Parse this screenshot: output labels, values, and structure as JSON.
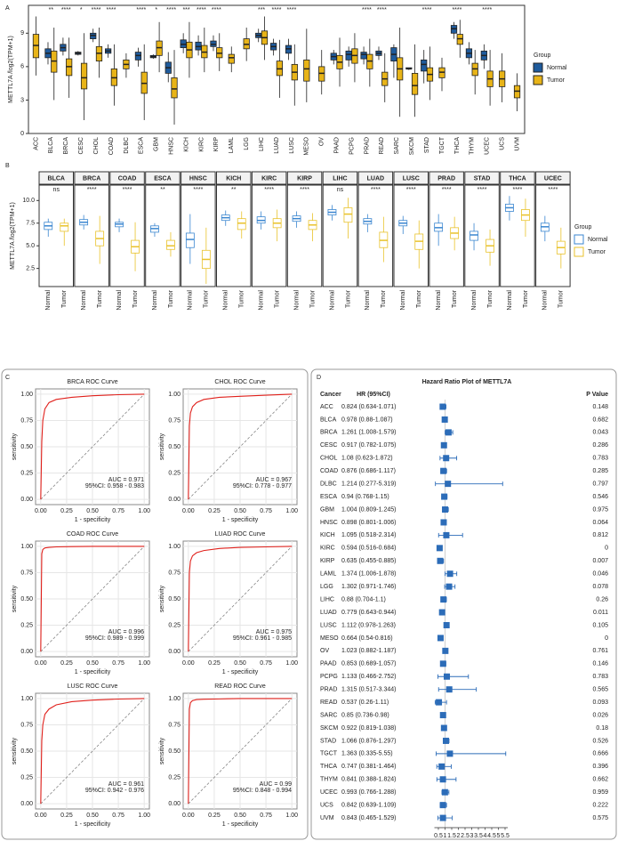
{
  "chart_data": [
    {
      "panel": "A",
      "type": "boxplot",
      "ylabel": "METTL7A /log2(TPM+1)",
      "categories": [
        "ACC",
        "BLCA",
        "BRCA",
        "CESC",
        "CHOL",
        "COAD",
        "DLBC",
        "ESCA",
        "GBM",
        "HNSC",
        "KICH",
        "KIRC",
        "KIRP",
        "LAML",
        "LGG",
        "LIHC",
        "LUAD",
        "LUSC",
        "MESO",
        "OV",
        "PAAD",
        "PCPG",
        "PRAD",
        "READ",
        "SARC",
        "SKCM",
        "STAD",
        "TGCT",
        "THCA",
        "THYM",
        "UCEC",
        "UCS",
        "UVM"
      ],
      "significance": [
        null,
        "**",
        "****",
        "*",
        "****",
        "****",
        null,
        "****",
        "*",
        "****",
        "***",
        "****",
        "****",
        null,
        null,
        "***",
        "****",
        "****",
        null,
        null,
        null,
        null,
        "****",
        "****",
        null,
        null,
        "****",
        null,
        "****",
        null,
        "****",
        null,
        null
      ],
      "ylim": [
        0,
        11.5
      ],
      "yticks": [
        0,
        3,
        6,
        9
      ],
      "legend_title": "Group",
      "series": [
        {
          "name": "Normal",
          "color": "#1f5b9c",
          "q1": [
            null,
            6.8,
            7.4,
            7.1,
            8.5,
            7.2,
            null,
            6.6,
            6.8,
            5.4,
            7.7,
            7.5,
            7.8,
            null,
            null,
            8.6,
            7.5,
            7.2,
            null,
            null,
            6.6,
            6.6,
            6.7,
            7.0,
            6.5,
            5.8,
            5.6,
            null,
            9.0,
            6.8,
            6.6,
            null,
            null
          ],
          "median": [
            null,
            7.2,
            7.7,
            7.2,
            8.8,
            7.4,
            null,
            7.0,
            6.9,
            5.9,
            8.0,
            7.8,
            8.0,
            null,
            null,
            8.8,
            7.8,
            7.6,
            null,
            null,
            6.9,
            7.1,
            7.1,
            7.2,
            7.1,
            5.8,
            6.2,
            null,
            9.4,
            7.2,
            7.0,
            null,
            null
          ],
          "q3": [
            null,
            7.6,
            8.0,
            7.3,
            9.0,
            7.6,
            null,
            7.3,
            7.0,
            6.4,
            8.4,
            8.2,
            8.3,
            null,
            null,
            9.0,
            8.1,
            7.9,
            null,
            null,
            7.2,
            7.4,
            7.3,
            7.4,
            7.7,
            5.9,
            6.6,
            null,
            9.7,
            7.6,
            7.4,
            null,
            null
          ],
          "low": [
            null,
            6.2,
            7.0,
            7.0,
            8.2,
            6.8,
            null,
            6.0,
            6.7,
            4.6,
            7.2,
            7.0,
            7.4,
            null,
            null,
            8.2,
            7.0,
            6.6,
            null,
            null,
            6.2,
            6.0,
            6.2,
            6.6,
            5.0,
            5.7,
            4.5,
            null,
            8.5,
            6.2,
            5.8,
            null,
            null
          ],
          "high": [
            null,
            8.2,
            8.6,
            7.4,
            9.4,
            8.0,
            null,
            7.7,
            7.1,
            7.3,
            9.0,
            8.8,
            8.8,
            null,
            null,
            9.4,
            8.5,
            8.5,
            null,
            null,
            7.5,
            7.8,
            7.8,
            7.8,
            8.0,
            5.9,
            7.5,
            null,
            10.0,
            8.2,
            8.0,
            null,
            null
          ]
        },
        {
          "name": "Tumor",
          "color": "#e8b418",
          "q1": [
            6.8,
            5.5,
            5.2,
            4.0,
            6.5,
            4.3,
            5.8,
            3.6,
            7.0,
            3.2,
            6.8,
            6.8,
            6.8,
            6.3,
            7.6,
            8.0,
            5.2,
            4.8,
            4.7,
            4.7,
            5.8,
            6.3,
            5.8,
            4.3,
            4.8,
            3.5,
            4.7,
            5.0,
            8.0,
            5.2,
            4.2,
            4.2,
            3.2
          ],
          "median": [
            7.9,
            6.5,
            6.0,
            5.0,
            7.2,
            5.0,
            6.2,
            4.5,
            7.7,
            4.0,
            7.5,
            7.3,
            7.2,
            6.8,
            8.0,
            8.6,
            5.8,
            5.5,
            5.8,
            5.4,
            6.4,
            7.0,
            6.5,
            4.9,
            5.8,
            4.3,
            5.3,
            5.5,
            8.5,
            5.8,
            4.9,
            4.9,
            3.8
          ],
          "q3": [
            8.9,
            7.4,
            6.7,
            6.3,
            7.8,
            5.8,
            6.6,
            5.5,
            8.3,
            5.0,
            8.2,
            7.9,
            7.7,
            7.1,
            8.5,
            9.2,
            6.5,
            6.2,
            6.6,
            6.0,
            7.0,
            7.6,
            7.1,
            5.5,
            6.8,
            5.4,
            5.9,
            5.9,
            8.9,
            6.3,
            5.6,
            5.6,
            4.3
          ],
          "low": [
            5.2,
            3.0,
            3.2,
            1.2,
            5.0,
            2.5,
            5.0,
            1.2,
            5.5,
            0.8,
            5.0,
            5.5,
            5.6,
            5.5,
            6.5,
            6.6,
            3.2,
            2.5,
            2.8,
            3.5,
            4.2,
            4.6,
            4.2,
            2.8,
            1.5,
            1.5,
            3.0,
            3.8,
            6.8,
            3.5,
            2.5,
            2.8,
            2.0
          ],
          "high": [
            10.5,
            9.5,
            8.6,
            9.0,
            9.5,
            8.0,
            7.2,
            8.0,
            10.0,
            7.5,
            10.0,
            9.5,
            9.0,
            7.8,
            9.5,
            10.5,
            8.4,
            8.0,
            9.4,
            7.5,
            8.6,
            9.0,
            8.5,
            7.2,
            9.5,
            8.0,
            7.8,
            6.8,
            10.2,
            7.5,
            7.5,
            7.2,
            5.4
          ]
        }
      ]
    },
    {
      "panel": "B",
      "type": "paired_boxplot",
      "ylabel": "METTL7A /log2(TPM+1)",
      "categories": [
        "BLCA",
        "BRCA",
        "COAD",
        "ESCA",
        "HNSC",
        "KICH",
        "KIRC",
        "KIRP",
        "LIHC",
        "LUAD",
        "LUSC",
        "PRAD",
        "STAD",
        "THCA",
        "UCEC"
      ],
      "significance": [
        "ns",
        "****",
        "****",
        "**",
        "****",
        "**",
        "****",
        "****",
        "ns",
        "****",
        "****",
        "****",
        "****",
        "****",
        "****"
      ],
      "ylim": [
        0.5,
        11.7
      ],
      "yticks": [
        2.5,
        {
          "value": 5,
          "label": "5.0"
        },
        7.5,
        {
          "value": 10,
          "label": "10.0"
        }
      ],
      "legend_title": "Group",
      "series": [
        {
          "name": "Normal",
          "color": "#3a86d0",
          "q1": [
            6.8,
            7.3,
            7.1,
            6.5,
            4.8,
            7.8,
            7.5,
            7.7,
            8.4,
            7.4,
            7.2,
            6.6,
            5.6,
            8.8,
            6.6
          ],
          "median": [
            7.2,
            7.6,
            7.4,
            6.9,
            5.7,
            8.1,
            7.8,
            8.0,
            8.7,
            7.7,
            7.5,
            7.0,
            6.2,
            9.2,
            7.1
          ],
          "q3": [
            7.6,
            7.9,
            7.6,
            7.2,
            6.4,
            8.4,
            8.2,
            8.3,
            9.0,
            8.0,
            7.8,
            7.5,
            6.6,
            9.6,
            7.5
          ],
          "low": [
            6.0,
            6.8,
            6.5,
            6.0,
            3.0,
            7.2,
            6.8,
            7.0,
            7.8,
            6.5,
            6.3,
            5.0,
            4.5,
            7.8,
            5.5
          ],
          "high": [
            8.0,
            8.4,
            8.0,
            7.5,
            8.5,
            8.9,
            8.8,
            8.8,
            9.5,
            8.5,
            8.3,
            8.5,
            7.5,
            10.5,
            8.3
          ]
        },
        {
          "name": "Tumor",
          "color": "#e9c22b",
          "q1": [
            6.6,
            5.0,
            4.2,
            4.6,
            2.5,
            6.8,
            7.0,
            6.8,
            7.6,
            4.8,
            4.6,
            5.8,
            4.3,
            7.8,
            4.1
          ],
          "median": [
            7.2,
            5.8,
            4.9,
            5.0,
            3.5,
            7.5,
            7.5,
            7.3,
            8.5,
            5.6,
            5.5,
            6.4,
            5.0,
            8.4,
            4.8
          ],
          "q3": [
            7.5,
            6.6,
            5.6,
            5.6,
            4.5,
            8.0,
            8.0,
            7.8,
            9.2,
            6.5,
            6.3,
            7.0,
            5.7,
            9.0,
            5.5
          ],
          "low": [
            5.0,
            3.0,
            2.2,
            3.8,
            0.8,
            5.8,
            5.5,
            5.5,
            5.8,
            3.2,
            2.5,
            4.5,
            2.8,
            6.0,
            2.5
          ],
          "high": [
            8.0,
            8.3,
            7.6,
            6.5,
            7.0,
            8.8,
            9.0,
            8.6,
            10.3,
            8.2,
            7.8,
            8.2,
            6.8,
            10.2,
            7.0
          ]
        }
      ]
    },
    {
      "panel": "C",
      "type": "roc",
      "xlabel": "1 - specificity",
      "ylabel": "sensitivity",
      "color": "#e0201b",
      "xlim": [
        -0.05,
        1.05
      ],
      "ylim": [
        -0.05,
        1.05
      ],
      "xticks": [
        {
          "value": 0,
          "label": "0.00"
        },
        0.25,
        {
          "value": 0.5,
          "label": "0.50"
        },
        0.75,
        {
          "value": 1,
          "label": "1.00"
        }
      ],
      "yticks": [
        {
          "value": 0,
          "label": "0.00"
        },
        0.25,
        {
          "value": 0.5,
          "label": "0.50"
        },
        0.75,
        {
          "value": 1,
          "label": "1.00"
        }
      ],
      "panels": [
        {
          "title": "BRCA ROC Curve",
          "annotation": [
            "AUC = 0.971",
            "95%CI: 0.958 - 0.983"
          ],
          "x": [
            0,
            0.01,
            0.02,
            0.04,
            0.08,
            0.15,
            0.3,
            0.5,
            0.75,
            1
          ],
          "y": [
            0,
            0.55,
            0.75,
            0.86,
            0.92,
            0.95,
            0.97,
            0.985,
            0.995,
            1
          ]
        },
        {
          "title": "CHOL ROC Curve",
          "annotation": [
            "AUC = 0.967",
            "95%CI: 0.778 - 0.977"
          ],
          "x": [
            0,
            0.01,
            0.02,
            0.04,
            0.08,
            0.15,
            0.3,
            0.5,
            0.75,
            1
          ],
          "y": [
            0,
            0.7,
            0.82,
            0.88,
            0.92,
            0.95,
            0.97,
            0.98,
            0.99,
            1
          ]
        },
        {
          "title": "COAD ROC Curve",
          "annotation": [
            "AUC = 0.996",
            "95%CI: 0.989 - 0.999"
          ],
          "x": [
            0,
            0.01,
            0.02,
            0.04,
            0.08,
            0.15,
            0.3,
            0.5,
            0.75,
            1
          ],
          "y": [
            0,
            0.93,
            0.97,
            0.985,
            0.99,
            0.995,
            0.998,
            1,
            1,
            1
          ]
        },
        {
          "title": "LUAD ROC Curve",
          "annotation": [
            "AUC = 0.975",
            "95%CI: 0.961 - 0.985"
          ],
          "x": [
            0,
            0.01,
            0.02,
            0.04,
            0.08,
            0.15,
            0.3,
            0.5,
            0.75,
            1
          ],
          "y": [
            0,
            0.75,
            0.86,
            0.91,
            0.94,
            0.96,
            0.98,
            0.99,
            0.995,
            1
          ]
        },
        {
          "title": "LUSC ROC Curve",
          "annotation": [
            "AUC = 0.961",
            "95%CI: 0.942 - 0.976"
          ],
          "x": [
            0,
            0.01,
            0.02,
            0.04,
            0.08,
            0.15,
            0.3,
            0.5,
            0.75,
            1
          ],
          "y": [
            0,
            0.6,
            0.75,
            0.85,
            0.9,
            0.94,
            0.97,
            0.985,
            0.995,
            1
          ]
        },
        {
          "title": "READ ROC Curve",
          "annotation": [
            "AUC = 0.99",
            "95%CI: 0.848 - 0.994"
          ],
          "x": [
            0,
            0.01,
            0.02,
            0.04,
            0.08,
            0.15,
            0.3,
            0.5,
            0.75,
            1
          ],
          "y": [
            0,
            0.9,
            0.96,
            0.98,
            0.99,
            0.993,
            0.996,
            1,
            1,
            1
          ]
        }
      ]
    },
    {
      "panel": "D",
      "type": "forest",
      "title": "Hazard Ratio Plot of METTL7A",
      "columns": [
        "Cancer",
        "HR (95%CI)",
        "P Value"
      ],
      "color": "#2c6cb8",
      "categories": [
        "ACC",
        "BLCA",
        "BRCA",
        "CESC",
        "CHOL",
        "COAD",
        "DLBC",
        "ESCA",
        "GBM",
        "HNSC",
        "KICH",
        "KIRC",
        "KIRP",
        "LAML",
        "LGG",
        "LIHC",
        "LUAD",
        "LUSC",
        "MESO",
        "OV",
        "PAAD",
        "PCPG",
        "PRAD",
        "READ",
        "SARC",
        "SKCM",
        "STAD",
        "TGCT",
        "THCA",
        "THYM",
        "UCEC",
        "UCS",
        "UVM"
      ],
      "values": [
        0.824,
        0.978,
        1.261,
        0.917,
        1.08,
        0.876,
        1.214,
        0.94,
        1.004,
        0.898,
        1.095,
        0.594,
        0.635,
        1.374,
        1.302,
        0.88,
        0.779,
        1.112,
        0.664,
        1.023,
        0.853,
        1.133,
        1.315,
        0.537,
        0.85,
        0.922,
        1.066,
        1.363,
        0.747,
        0.841,
        0.993,
        0.842,
        0.843
      ],
      "ci_low": [
        0.634,
        0.88,
        1.008,
        0.782,
        0.623,
        0.686,
        0.277,
        0.768,
        0.809,
        0.801,
        0.518,
        0.516,
        0.455,
        1.006,
        0.971,
        0.704,
        0.643,
        0.978,
        0.54,
        0.882,
        0.689,
        0.466,
        0.517,
        0.26,
        0.736,
        0.819,
        0.876,
        0.335,
        0.381,
        0.388,
        0.766,
        0.639,
        0.465
      ],
      "ci_high": [
        1.071,
        1.087,
        1.579,
        1.075,
        1.872,
        1.117,
        5.319,
        1.15,
        1.245,
        1.006,
        2.314,
        0.684,
        0.885,
        1.878,
        1.746,
        1.1,
        0.944,
        1.263,
        0.816,
        1.187,
        1.057,
        2.752,
        3.344,
        1.11,
        0.98,
        1.038,
        1.297,
        5.55,
        1.464,
        1.824,
        1.288,
        1.109,
        1.529
      ],
      "value_labels": [
        "0.824 (0.634-1.071)",
        "0.978 (0.88-1.087)",
        "1.261 (1.008-1.579)",
        "0.917 (0.782-1.075)",
        "1.08 (0.623-1.872)",
        "0.876 (0.686-1.117)",
        "1.214 (0.277-5.319)",
        "0.94 (0.768-1.15)",
        "1.004 (0.809-1.245)",
        "0.898 (0.801-1.006)",
        "1.095 (0.518-2.314)",
        "0.594 (0.516-0.684)",
        "0.635 (0.455-0.885)",
        "1.374 (1.006-1.878)",
        "1.302 (0.971-1.746)",
        "0.88 (0.704-1.1)",
        "0.779 (0.643-0.944)",
        "1.112 (0.978-1.263)",
        "0.664 (0.54-0.816)",
        "1.023 (0.882-1.187)",
        "0.853 (0.689-1.057)",
        "1.133 (0.466-2.752)",
        "1.315 (0.517-3.344)",
        "0.537 (0.26-1.11)",
        "0.85 (0.736-0.98)",
        "0.922 (0.819-1.038)",
        "1.066 (0.876-1.297)",
        "1.363 (0.335-5.55)",
        "0.747 (0.381-1.464)",
        "0.841 (0.388-1.824)",
        "0.993 (0.766-1.288)",
        "0.842 (0.639-1.109)",
        "0.843 (0.465-1.529)"
      ],
      "p_values": [
        0.148,
        0.682,
        0.043,
        0.286,
        0.783,
        0.285,
        0.797,
        0.546,
        0.975,
        0.064,
        0.812,
        0,
        0.007,
        0.046,
        0.078,
        0.26,
        0.011,
        0.105,
        0,
        0.761,
        0.146,
        0.783,
        0.565,
        0.093,
        0.026,
        0.18,
        0.526,
        0.666,
        0.396,
        0.662,
        0.959,
        0.222,
        0.575
      ],
      "xlim": [
        0.2,
        5.7
      ],
      "xticks": [
        0.5,
        1,
        1.5,
        2,
        2.5,
        3,
        3.5,
        4,
        4.5,
        5,
        5.5
      ],
      "ref_line": 1
    }
  ]
}
